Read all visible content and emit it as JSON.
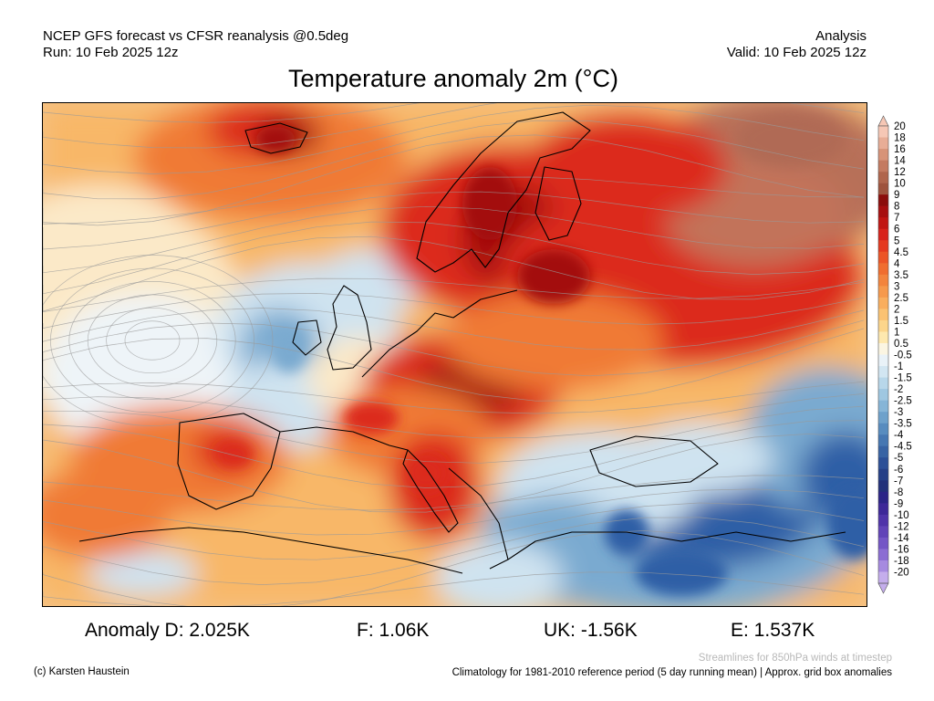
{
  "header": {
    "left_line1": "NCEP GFS forecast vs CFSR reanalysis @0.5deg",
    "left_line2": "Run: 10 Feb 2025 12z",
    "right_line1": "Analysis",
    "right_line2": "Valid: 10 Feb 2025 12z"
  },
  "title": "Temperature anomaly 2m (°C)",
  "stats": {
    "anomaly_d": "Anomaly D: 2.025K",
    "f": "F: 1.06K",
    "uk": "UK: -1.56K",
    "e": "E: 1.537K"
  },
  "footer": {
    "streamlines_note": "Streamlines for 850hPa winds at timestep",
    "copyright": "(c) Karsten Haustein",
    "climatology": "Climatology for 1981-2010 reference period (5 day running mean) | Approx. grid box anomalies"
  },
  "colorbar": {
    "labels": [
      "20",
      "18",
      "16",
      "14",
      "12",
      "10",
      "9",
      "8",
      "7",
      "6",
      "5",
      "4.5",
      "4",
      "3.5",
      "3",
      "2.5",
      "2",
      "1.5",
      "1",
      "0.5",
      "-0.5",
      "-1",
      "-1.5",
      "-2",
      "-2.5",
      "-3",
      "-3.5",
      "-4",
      "-4.5",
      "-5",
      "-6",
      "-7",
      "-8",
      "-9",
      "-10",
      "-12",
      "-14",
      "-16",
      "-18",
      "-20"
    ],
    "colors": [
      "#f6c7b5",
      "#e8ad96",
      "#d79378",
      "#c47a60",
      "#b0654c",
      "#9e533d",
      "#8b0d0b",
      "#a70f0f",
      "#c11512",
      "#d8221a",
      "#e5391f",
      "#ec5426",
      "#f06d2f",
      "#f3843d",
      "#f6994c",
      "#f9ae5e",
      "#fbc272",
      "#fcd58b",
      "#fee8ae",
      "#fbf5e2",
      "#e9f2f8",
      "#d2e6f2",
      "#b8d7ea",
      "#9fc7e1",
      "#86b5d7",
      "#6ea1cb",
      "#588cbf",
      "#4677b2",
      "#3763a4",
      "#2b4f97",
      "#243f87",
      "#22307a",
      "#2b2487",
      "#3d2798",
      "#4f33a9",
      "#6143b8",
      "#7455c6",
      "#8b6dd3",
      "#a68ae0",
      "#c4adec"
    ]
  },
  "map": {
    "palette": {
      "warm_deep": "#a30f10",
      "warm": "#dc2b1c",
      "warm_mid": "#f07a35",
      "warm_light": "#f8b768",
      "neutral": "#fbe9c8",
      "cool_light": "#cfe3f0",
      "cool": "#7aaad0",
      "cool_deep": "#2f5ea6",
      "extreme_warm": "#b77059",
      "coastline": "#000000",
      "streamline": "#9a9a9a"
    }
  }
}
